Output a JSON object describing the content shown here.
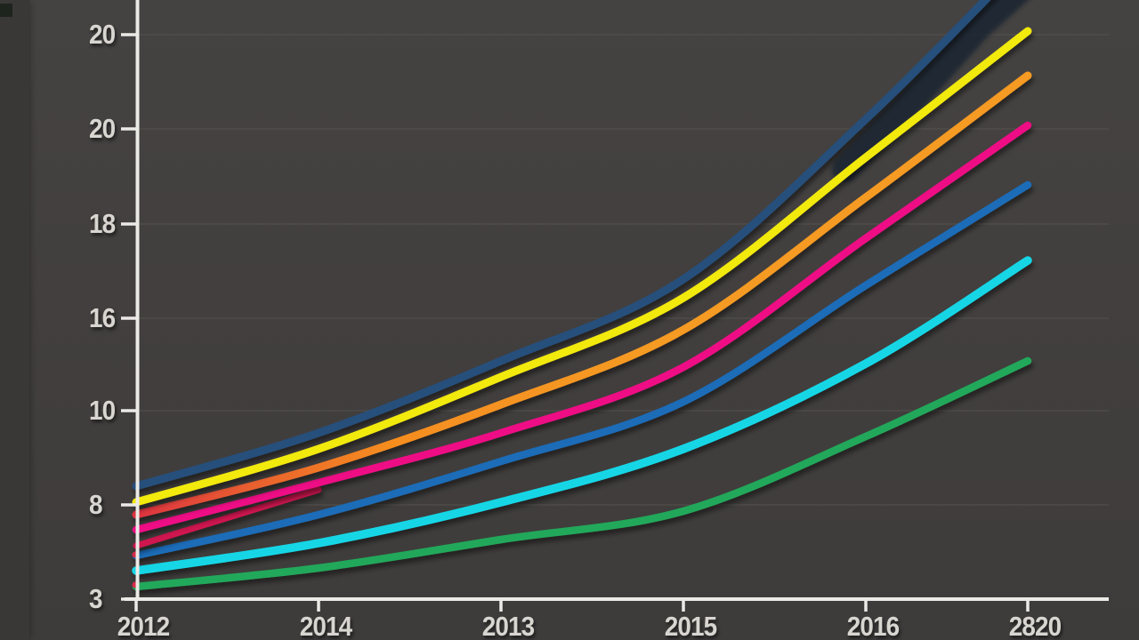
{
  "chart_data": {
    "type": "line",
    "title": "",
    "legend": "none",
    "x_tick_labels": [
      "2012",
      "2014",
      "2013",
      "2015",
      "2016",
      "2820"
    ],
    "y_tick_labels": [
      "20",
      "20",
      "18",
      "16",
      "10",
      "8",
      "3"
    ],
    "y_gridline_values_est": [
      21,
      18,
      15,
      12,
      9,
      6,
      3
    ],
    "y_range_est": [
      3,
      21
    ],
    "grid": "faint horizontal gridlines",
    "colors": {
      "background": "#423f3e",
      "axis": "#eceae6",
      "gridline": "#57544f",
      "label": "#d9d6d1"
    },
    "series": [
      {
        "name": "navy",
        "color": "#25507c",
        "values": [
          6.6,
          8.3,
          10.6,
          13.2,
          18.3,
          23.5
        ]
      },
      {
        "name": "green",
        "color": "#20a85a",
        "values": [
          3.4,
          4.0,
          4.9,
          5.8,
          8.2,
          10.6
        ]
      },
      {
        "name": "cyan",
        "color": "#15d6e6",
        "values": [
          3.9,
          4.8,
          6.1,
          7.8,
          10.5,
          13.8
        ]
      },
      {
        "name": "blue",
        "color": "#1a6cb8",
        "values": [
          4.4,
          5.7,
          7.4,
          9.3,
          13.0,
          16.2
        ]
      },
      {
        "name": "crimson-artifact",
        "color": "#cf1350",
        "values": [
          4.7,
          6.5,
          null,
          null,
          null,
          null
        ]
      },
      {
        "name": "magenta",
        "color": "#ee1185",
        "values": [
          5.2,
          6.7,
          8.3,
          10.4,
          14.5,
          18.1
        ]
      },
      {
        "name": "orange",
        "color": "#f59420",
        "color_start": "#dd3341",
        "values": [
          5.7,
          7.2,
          9.2,
          11.6,
          15.8,
          19.7
        ]
      },
      {
        "name": "yellow",
        "color": "#f2e90f",
        "values": [
          6.1,
          7.8,
          10.1,
          12.6,
          17.1,
          21.1
        ]
      }
    ]
  }
}
